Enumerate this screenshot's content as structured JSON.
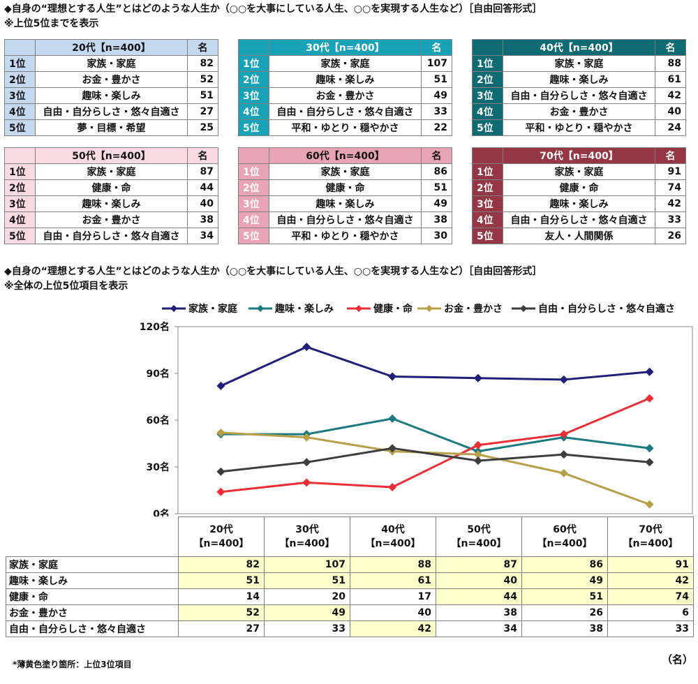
{
  "section1": {
    "title": "◆自身の“理想とする人生”とはどのような人生か（○○を大事にしている人生、○○を実現する人生など）［自由回答形式］",
    "note": "※上位5位までを表示"
  },
  "section2": {
    "title": "◆自身の“理想とする人生”とはどのような人生か（○○を大事にしている人生、○○を実現する人生など）［自由回答形式］",
    "note": "※全体の上位5位項目を表示"
  },
  "rank_tables": [
    {
      "header": "20代【n=400】",
      "count_header": "名",
      "header_bg": "#c5d9f1",
      "header_color": "#111111",
      "rank_bg": "#c5d9f1",
      "rank_color": "#111111",
      "rows": [
        {
          "rank": "1位",
          "item": "家族・家庭",
          "count": "82"
        },
        {
          "rank": "2位",
          "item": "お金・豊かさ",
          "count": "52"
        },
        {
          "rank": "3位",
          "item": "趣味・楽しみ",
          "count": "51"
        },
        {
          "rank": "4位",
          "item": "自由・自分らしさ・悠々自適さ",
          "count": "27"
        },
        {
          "rank": "5位",
          "item": "夢・目標・希望",
          "count": "25"
        }
      ]
    },
    {
      "header": "30代【n=400】",
      "count_header": "名",
      "header_bg": "#17a2b8",
      "header_color": "#ffffff",
      "rank_bg": "#17a2b8",
      "rank_color": "#ffffff",
      "rows": [
        {
          "rank": "1位",
          "item": "家族・家庭",
          "count": "107"
        },
        {
          "rank": "2位",
          "item": "趣味・楽しみ",
          "count": "51"
        },
        {
          "rank": "3位",
          "item": "お金・豊かさ",
          "count": "49"
        },
        {
          "rank": "4位",
          "item": "自由・自分らしさ・悠々自適さ",
          "count": "33"
        },
        {
          "rank": "5位",
          "item": "平和・ゆとり・穏やかさ",
          "count": "22"
        }
      ]
    },
    {
      "header": "40代【n=400】",
      "count_header": "名",
      "header_bg": "#0f6b73",
      "header_color": "#ffffff",
      "rank_bg": "#0f6b73",
      "rank_color": "#ffffff",
      "rows": [
        {
          "rank": "1位",
          "item": "家族・家庭",
          "count": "88"
        },
        {
          "rank": "2位",
          "item": "趣味・楽しみ",
          "count": "61"
        },
        {
          "rank": "3位",
          "item": "自由・自分らしさ・悠々自適さ",
          "count": "42"
        },
        {
          "rank": "4位",
          "item": "お金・豊かさ",
          "count": "40"
        },
        {
          "rank": "5位",
          "item": "平和・ゆとり・穏やかさ",
          "count": "24"
        }
      ]
    },
    {
      "header": "50代【n=400】",
      "count_header": "名",
      "header_bg": "#fadbe3",
      "header_color": "#111111",
      "rank_bg": "#fadbe3",
      "rank_color": "#111111",
      "rows": [
        {
          "rank": "1位",
          "item": "家族・家庭",
          "count": "87"
        },
        {
          "rank": "2位",
          "item": "健康・命",
          "count": "44"
        },
        {
          "rank": "3位",
          "item": "趣味・楽しみ",
          "count": "40"
        },
        {
          "rank": "4位",
          "item": "お金・豊かさ",
          "count": "38"
        },
        {
          "rank": "5位",
          "item": "自由・自分らしさ・悠々自適さ",
          "count": "34"
        }
      ]
    },
    {
      "header": "60代【n=400】",
      "count_header": "名",
      "header_bg": "#e9a3b7",
      "header_color": "#111111",
      "rank_bg": "#e9a3b7",
      "rank_color": "#ffffff",
      "rows": [
        {
          "rank": "1位",
          "item": "家族・家庭",
          "count": "86"
        },
        {
          "rank": "2位",
          "item": "健康・命",
          "count": "51"
        },
        {
          "rank": "3位",
          "item": "趣味・楽しみ",
          "count": "49"
        },
        {
          "rank": "4位",
          "item": "自由・自分らしさ・悠々自適さ",
          "count": "38"
        },
        {
          "rank": "5位",
          "item": "平和・ゆとり・穏やかさ",
          "count": "30"
        }
      ]
    },
    {
      "header": "70代【n=400】",
      "count_header": "名",
      "header_bg": "#953645",
      "header_color": "#ffffff",
      "rank_bg": "#953645",
      "rank_color": "#ffffff",
      "rows": [
        {
          "rank": "1位",
          "item": "家族・家庭",
          "count": "91"
        },
        {
          "rank": "2位",
          "item": "健康・命",
          "count": "74"
        },
        {
          "rank": "3位",
          "item": "趣味・楽しみ",
          "count": "42"
        },
        {
          "rank": "4位",
          "item": "自由・自分らしさ・悠々自適さ",
          "count": "33"
        },
        {
          "rank": "5位",
          "item": "友人・人間関係",
          "count": "26"
        }
      ]
    }
  ],
  "chart_data": {
    "type": "line",
    "categories": [
      "20代",
      "30代",
      "40代",
      "50代",
      "60代",
      "70代"
    ],
    "category_labels": [
      "20代\n【n=400】",
      "30代\n【n=400】",
      "40代\n【n=400】",
      "50代\n【n=400】",
      "60代\n【n=400】",
      "70代\n【n=400】"
    ],
    "y_ticks": [
      "0名",
      "30名",
      "60名",
      "90名",
      "120名"
    ],
    "ylim": [
      0,
      120
    ],
    "grid": false,
    "legend_position": "top",
    "unit": "（名）",
    "series": [
      {
        "name": "家族・家庭",
        "color": "#1f1f7a",
        "values": [
          82,
          107,
          88,
          87,
          86,
          91
        ],
        "highlight": [
          true,
          true,
          true,
          true,
          true,
          true
        ]
      },
      {
        "name": "趣味・楽しみ",
        "color": "#1a7a80",
        "values": [
          51,
          51,
          61,
          40,
          49,
          42
        ],
        "highlight": [
          true,
          true,
          true,
          true,
          true,
          true
        ]
      },
      {
        "name": "健康・命",
        "color": "#ee2e36",
        "values": [
          14,
          20,
          17,
          44,
          51,
          74
        ],
        "highlight": [
          false,
          false,
          false,
          true,
          true,
          true
        ]
      },
      {
        "name": "お金・豊かさ",
        "color": "#b8a048",
        "values": [
          52,
          49,
          40,
          38,
          26,
          6
        ],
        "highlight": [
          true,
          true,
          false,
          false,
          false,
          false
        ]
      },
      {
        "name": "自由・自分らしさ・悠々自適さ",
        "color": "#3d3d3d",
        "values": [
          27,
          33,
          42,
          34,
          38,
          33
        ],
        "highlight": [
          false,
          false,
          true,
          false,
          false,
          false
        ]
      }
    ]
  },
  "footnote": "*薄黄色塗り箇所：上位3位項目"
}
